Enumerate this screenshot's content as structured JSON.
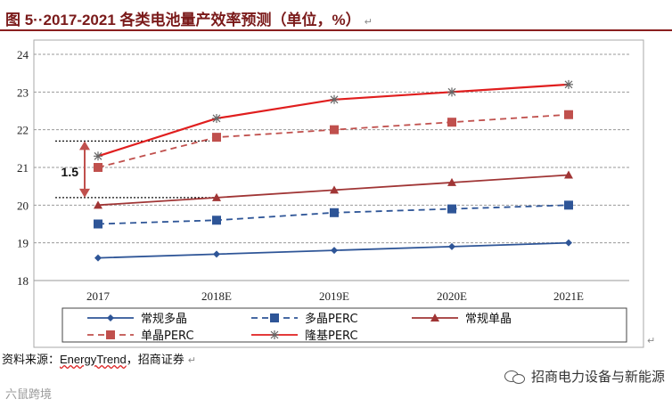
{
  "header": {
    "title": "图 5··2017-2021 各类电池量产效率预测（单位，%）",
    "end_mark": "↵"
  },
  "chart_data": {
    "type": "line",
    "categories": [
      "2017",
      "2018E",
      "2019E",
      "2020E",
      "2021E"
    ],
    "ylim": [
      18,
      24
    ],
    "yticks": [
      "18",
      "19",
      "20",
      "21",
      "22",
      "23",
      "24"
    ],
    "grid": true,
    "legend_position": "bottom",
    "series": [
      {
        "name": "常规多晶",
        "values": [
          18.6,
          18.7,
          18.8,
          18.9,
          19.0
        ],
        "color": "#2e5597",
        "dash": "solid",
        "marker": "diamond"
      },
      {
        "name": "多晶PERC",
        "values": [
          19.5,
          19.6,
          19.8,
          19.9,
          20.0
        ],
        "color": "#2e5597",
        "dash": "dashed",
        "marker": "square"
      },
      {
        "name": "常规单晶",
        "values": [
          20.0,
          20.2,
          20.4,
          20.6,
          20.8
        ],
        "color": "#a03535",
        "dash": "solid",
        "marker": "triangle"
      },
      {
        "name": "单晶PERC",
        "values": [
          21.0,
          21.8,
          22.0,
          22.2,
          22.4
        ],
        "color": "#c0504d",
        "dash": "dashed",
        "marker": "square"
      },
      {
        "name": "隆基PERC",
        "values": [
          21.3,
          22.3,
          22.8,
          23.0,
          23.2
        ],
        "color": "#e01e1e",
        "dash": "solid",
        "marker": "star"
      }
    ],
    "annotation": {
      "label": "1.5",
      "from": 20.2,
      "to": 21.7
    }
  },
  "footer": {
    "source_prefix": "资料来源：",
    "source_brand": "EnergyTrend",
    "source_suffix": "，招商证券",
    "end_mark": "↵",
    "wechat_account": "招商电力设备与新能源",
    "left_watermark": "六鼠跨境"
  },
  "colors": {
    "title": "#7a1a1a",
    "grid": "#999999",
    "axis": "#888888"
  }
}
